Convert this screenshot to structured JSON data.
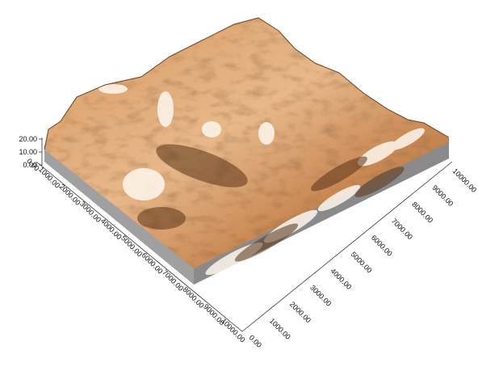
{
  "chart_data": {
    "type": "surface3d",
    "title": "",
    "z_axis": {
      "label": "",
      "ticks": [
        "20.00",
        "10.00",
        "0.00"
      ],
      "range": [
        0,
        20
      ]
    },
    "x_axis": {
      "label": "",
      "ticks": [
        "0.00",
        "1000.00",
        "2000.00",
        "3000.00",
        "4000.00",
        "5000.00",
        "6000.00",
        "7000.00",
        "8000.00",
        "9000.00",
        "10000.00"
      ],
      "range": [
        0,
        10000
      ]
    },
    "y_axis": {
      "label": "",
      "ticks": [
        "0.00",
        "1000.00",
        "2000.00",
        "3000.00",
        "4000.00",
        "5000.00",
        "6000.00",
        "7000.00",
        "8000.00",
        "9000.00",
        "10000.00"
      ],
      "range": [
        0,
        10000
      ]
    },
    "colormap": [
      "#ffffff",
      "#f1dccb",
      "#e0ad80",
      "#c9874f",
      "#9b5f2f",
      "#5e3519"
    ],
    "side_wall_color": "#8e8e8e",
    "grid": false,
    "legend": "none"
  }
}
